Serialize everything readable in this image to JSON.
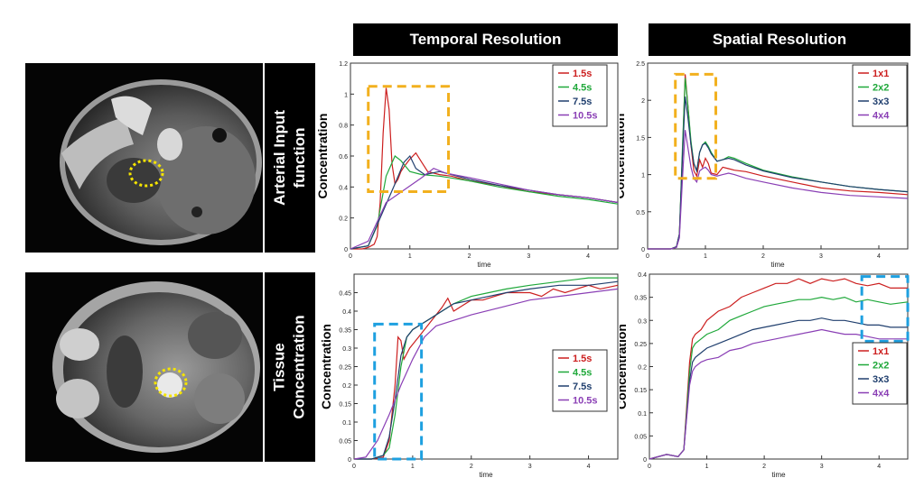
{
  "headers": {
    "temporal": "Temporal Resolution",
    "spatial": "Spatial Resolution"
  },
  "row_labels": {
    "aif_line1": "Arterial Input",
    "aif_line2": "function",
    "tissue_line1": "Tissue",
    "tissue_line2": "Concentration"
  },
  "colors": {
    "red": "#cc1f1f",
    "green": "#1fa83a",
    "blue": "#203f6e",
    "purple": "#8a3fb5",
    "orange_box": "#f2b01e",
    "cyan_box": "#1ea0e0",
    "marker": "#f5e400"
  },
  "chart_data": [
    {
      "id": "aif_temporal",
      "type": "line",
      "title": "",
      "xlabel": "time",
      "ylabel": "Concentration",
      "xlim": [
        0,
        4.5
      ],
      "ylim": [
        0,
        1.2
      ],
      "xticks": [
        0,
        1,
        2,
        3,
        4
      ],
      "yticks": [
        0,
        0.2,
        0.4,
        0.6,
        0.8,
        1,
        1.2
      ],
      "ytick_labels": [
        "0",
        "0.2",
        "0.4",
        "0.6",
        "0.8",
        "1",
        "1.2"
      ],
      "legend": [
        "1.5s",
        "4.5s",
        "7.5s",
        "10.5s"
      ],
      "legend_position": "top-right",
      "highlight": {
        "color": "orange",
        "x": [
          0.3,
          1.65
        ],
        "y": [
          0.37,
          1.05
        ]
      },
      "series": [
        {
          "name": "1.5s",
          "color": "red",
          "x": [
            0,
            0.2,
            0.3,
            0.4,
            0.45,
            0.5,
            0.55,
            0.6,
            0.65,
            0.7,
            0.75,
            0.8,
            0.85,
            0.9,
            1.0,
            1.1,
            1.2,
            1.3,
            1.5,
            1.7,
            2.0,
            2.5,
            3.0,
            3.5,
            4.0,
            4.5
          ],
          "y": [
            0,
            0,
            0.01,
            0.03,
            0.08,
            0.3,
            0.75,
            1.04,
            0.9,
            0.55,
            0.42,
            0.45,
            0.5,
            0.53,
            0.58,
            0.62,
            0.56,
            0.5,
            0.48,
            0.47,
            0.44,
            0.41,
            0.37,
            0.35,
            0.33,
            0.3
          ]
        },
        {
          "name": "4.5s",
          "color": "green",
          "x": [
            0,
            0.3,
            0.45,
            0.6,
            0.75,
            0.85,
            1.0,
            1.2,
            1.5,
            2.0,
            2.5,
            3.0,
            3.5,
            4.0,
            4.5
          ],
          "y": [
            0,
            0.02,
            0.15,
            0.47,
            0.6,
            0.57,
            0.5,
            0.48,
            0.47,
            0.44,
            0.4,
            0.37,
            0.34,
            0.32,
            0.29
          ]
        },
        {
          "name": "7.5s",
          "color": "blue",
          "x": [
            0,
            0.3,
            0.5,
            0.75,
            0.9,
            1.0,
            1.1,
            1.25,
            1.5,
            2.0,
            2.5,
            3.0,
            3.5,
            4.0,
            4.5
          ],
          "y": [
            0,
            0.02,
            0.2,
            0.42,
            0.56,
            0.6,
            0.52,
            0.48,
            0.5,
            0.45,
            0.41,
            0.38,
            0.35,
            0.33,
            0.3
          ]
        },
        {
          "name": "10.5s",
          "color": "purple",
          "x": [
            0,
            0.3,
            0.6,
            0.9,
            1.2,
            1.4,
            1.6,
            2.0,
            2.5,
            3.0,
            3.5,
            4.0,
            4.5
          ],
          "y": [
            0,
            0.05,
            0.3,
            0.38,
            0.46,
            0.52,
            0.49,
            0.46,
            0.42,
            0.38,
            0.35,
            0.33,
            0.3
          ]
        }
      ]
    },
    {
      "id": "aif_spatial",
      "type": "line",
      "title": "",
      "xlabel": "time",
      "ylabel": "Concentration",
      "xlim": [
        0,
        4.5
      ],
      "ylim": [
        0,
        2.5
      ],
      "xticks": [
        0,
        1,
        2,
        3,
        4
      ],
      "yticks": [
        0,
        0.5,
        1,
        1.5,
        2,
        2.5
      ],
      "ytick_labels": [
        "0",
        "0.5",
        "1",
        "1.5",
        "2",
        "2.5"
      ],
      "legend": [
        "1x1",
        "2x2",
        "3x3",
        "4x4"
      ],
      "legend_position": "top-right",
      "highlight": {
        "color": "orange",
        "x": [
          0.48,
          1.18
        ],
        "y": [
          0.95,
          2.35
        ]
      },
      "series": [
        {
          "name": "1x1",
          "color": "red",
          "x": [
            0,
            0.4,
            0.5,
            0.55,
            0.6,
            0.65,
            0.7,
            0.75,
            0.8,
            0.85,
            0.9,
            0.95,
            1.0,
            1.05,
            1.1,
            1.2,
            1.3,
            1.4,
            1.5,
            1.7,
            2.0,
            2.5,
            3.0,
            3.5,
            4.0,
            4.5
          ],
          "y": [
            0,
            0,
            0.03,
            0.2,
            1.2,
            2.35,
            1.9,
            1.4,
            1.05,
            0.98,
            1.2,
            1.1,
            1.22,
            1.15,
            1.02,
            1.0,
            1.1,
            1.08,
            1.06,
            1.04,
            0.98,
            0.9,
            0.82,
            0.78,
            0.76,
            0.73
          ]
        },
        {
          "name": "2x2",
          "color": "green",
          "x": [
            0,
            0.4,
            0.5,
            0.55,
            0.6,
            0.65,
            0.7,
            0.75,
            0.8,
            0.85,
            0.9,
            0.95,
            1.0,
            1.05,
            1.1,
            1.2,
            1.3,
            1.4,
            1.5,
            1.7,
            2.0,
            2.5,
            3.0,
            3.5,
            4.0,
            4.5
          ],
          "y": [
            0,
            0,
            0.03,
            0.2,
            1.3,
            2.3,
            1.9,
            1.45,
            1.15,
            1.05,
            1.3,
            1.4,
            1.44,
            1.38,
            1.3,
            1.18,
            1.2,
            1.24,
            1.22,
            1.15,
            1.06,
            0.97,
            0.9,
            0.84,
            0.8,
            0.77
          ]
        },
        {
          "name": "3x3",
          "color": "blue",
          "x": [
            0,
            0.4,
            0.5,
            0.55,
            0.6,
            0.65,
            0.7,
            0.75,
            0.8,
            0.85,
            0.9,
            0.95,
            1.0,
            1.05,
            1.1,
            1.2,
            1.3,
            1.4,
            1.5,
            1.7,
            2.0,
            2.5,
            3.0,
            3.5,
            4.0,
            4.5
          ],
          "y": [
            0,
            0,
            0.03,
            0.2,
            1.2,
            2.05,
            1.75,
            1.4,
            1.15,
            1.05,
            1.3,
            1.4,
            1.42,
            1.36,
            1.28,
            1.18,
            1.2,
            1.22,
            1.2,
            1.13,
            1.05,
            0.96,
            0.9,
            0.84,
            0.8,
            0.77
          ]
        },
        {
          "name": "4x4",
          "color": "purple",
          "x": [
            0,
            0.4,
            0.5,
            0.55,
            0.6,
            0.65,
            0.7,
            0.75,
            0.8,
            0.85,
            0.9,
            0.95,
            1.0,
            1.05,
            1.1,
            1.2,
            1.3,
            1.4,
            1.5,
            1.7,
            2.0,
            2.5,
            3.0,
            3.5,
            4.0,
            4.5
          ],
          "y": [
            0,
            0,
            0.02,
            0.15,
            0.9,
            1.6,
            1.35,
            1.1,
            0.95,
            0.9,
            1.05,
            1.08,
            1.1,
            1.06,
            1.0,
            0.98,
            1.0,
            1.02,
            1.0,
            0.95,
            0.9,
            0.82,
            0.76,
            0.72,
            0.7,
            0.68
          ]
        }
      ]
    },
    {
      "id": "tissue_temporal",
      "type": "line",
      "title": "",
      "xlabel": "time",
      "ylabel": "Concentration",
      "xlim": [
        0,
        4.5
      ],
      "ylim": [
        0,
        0.5
      ],
      "xticks": [
        0,
        1,
        2,
        3,
        4
      ],
      "yticks": [
        0,
        0.05,
        0.1,
        0.15,
        0.2,
        0.25,
        0.3,
        0.35,
        0.4,
        0.45
      ],
      "ytick_labels": [
        "0",
        "0.05",
        "0.1",
        "0.15",
        "0.2",
        "0.25",
        "0.3",
        "0.35",
        "0.4",
        "0.45"
      ],
      "legend": [
        "1.5s",
        "4.5s",
        "7.5s",
        "10.5s"
      ],
      "legend_position": "center-right",
      "highlight": {
        "color": "cyan",
        "x": [
          0.35,
          1.15
        ],
        "y": [
          0,
          0.365
        ]
      },
      "series": [
        {
          "name": "1.5s",
          "color": "red",
          "x": [
            0,
            0.3,
            0.5,
            0.6,
            0.7,
            0.75,
            0.8,
            0.85,
            0.95,
            1.1,
            1.3,
            1.5,
            1.6,
            1.7,
            1.8,
            2.0,
            2.2,
            2.4,
            2.6,
            2.8,
            3.0,
            3.2,
            3.4,
            3.6,
            3.8,
            4.0,
            4.2,
            4.5
          ],
          "y": [
            0,
            0,
            0.005,
            0.05,
            0.2,
            0.33,
            0.32,
            0.27,
            0.3,
            0.33,
            0.37,
            0.41,
            0.435,
            0.4,
            0.41,
            0.43,
            0.43,
            0.44,
            0.45,
            0.45,
            0.45,
            0.44,
            0.46,
            0.45,
            0.46,
            0.47,
            0.46,
            0.47
          ]
        },
        {
          "name": "4.5s",
          "color": "green",
          "x": [
            0,
            0.3,
            0.5,
            0.6,
            0.7,
            0.8,
            0.9,
            1.0,
            1.1,
            1.3,
            1.5,
            1.7,
            2.0,
            2.3,
            2.6,
            3.0,
            3.5,
            4.0,
            4.5
          ],
          "y": [
            0,
            0,
            0.01,
            0.03,
            0.12,
            0.25,
            0.33,
            0.35,
            0.36,
            0.38,
            0.4,
            0.42,
            0.44,
            0.45,
            0.46,
            0.47,
            0.48,
            0.49,
            0.49
          ]
        },
        {
          "name": "7.5s",
          "color": "blue",
          "x": [
            0,
            0.3,
            0.5,
            0.6,
            0.7,
            0.8,
            0.9,
            1.0,
            1.1,
            1.3,
            1.5,
            1.7,
            2.0,
            2.3,
            2.6,
            3.0,
            3.5,
            4.0,
            4.5
          ],
          "y": [
            0,
            0,
            0.01,
            0.06,
            0.16,
            0.28,
            0.33,
            0.35,
            0.36,
            0.38,
            0.4,
            0.42,
            0.43,
            0.44,
            0.45,
            0.46,
            0.47,
            0.47,
            0.48
          ]
        },
        {
          "name": "10.5s",
          "color": "purple",
          "x": [
            0,
            0.2,
            0.4,
            0.6,
            0.8,
            1.0,
            1.2,
            1.4,
            1.6,
            2.0,
            2.5,
            3.0,
            3.5,
            4.0,
            4.5
          ],
          "y": [
            0,
            0.005,
            0.05,
            0.12,
            0.2,
            0.27,
            0.33,
            0.36,
            0.37,
            0.39,
            0.41,
            0.43,
            0.44,
            0.45,
            0.46
          ]
        }
      ]
    },
    {
      "id": "tissue_spatial",
      "type": "line",
      "title": "",
      "xlabel": "time",
      "ylabel": "Concentration",
      "xlim": [
        0,
        4.5
      ],
      "ylim": [
        0,
        0.4
      ],
      "xticks": [
        0,
        1,
        2,
        3,
        4
      ],
      "yticks": [
        0,
        0.05,
        0.1,
        0.15,
        0.2,
        0.25,
        0.3,
        0.35,
        0.4
      ],
      "ytick_labels": [
        "0",
        "0.05",
        "0.1",
        "0.15",
        "0.2",
        "0.25",
        "0.3",
        "0.35",
        "0.4"
      ],
      "legend": [
        "1x1",
        "2x2",
        "3x3",
        "4x4"
      ],
      "legend_position": "center-right",
      "highlight": {
        "color": "cyan",
        "x": [
          3.7,
          4.5
        ],
        "y": [
          0.255,
          0.395
        ]
      },
      "series": [
        {
          "name": "1x1",
          "color": "red",
          "x": [
            0,
            0.3,
            0.5,
            0.6,
            0.7,
            0.75,
            0.8,
            0.9,
            1.0,
            1.2,
            1.4,
            1.6,
            1.8,
            2.0,
            2.2,
            2.4,
            2.6,
            2.8,
            3.0,
            3.2,
            3.4,
            3.6,
            3.8,
            4.0,
            4.2,
            4.5
          ],
          "y": [
            0,
            0.01,
            0.005,
            0.02,
            0.21,
            0.26,
            0.27,
            0.28,
            0.3,
            0.32,
            0.33,
            0.35,
            0.36,
            0.37,
            0.38,
            0.38,
            0.39,
            0.38,
            0.39,
            0.385,
            0.39,
            0.38,
            0.375,
            0.38,
            0.37,
            0.37
          ]
        },
        {
          "name": "2x2",
          "color": "green",
          "x": [
            0,
            0.3,
            0.5,
            0.6,
            0.7,
            0.75,
            0.8,
            0.9,
            1.0,
            1.2,
            1.4,
            1.6,
            1.8,
            2.0,
            2.2,
            2.4,
            2.6,
            2.8,
            3.0,
            3.2,
            3.4,
            3.6,
            3.8,
            4.0,
            4.2,
            4.5
          ],
          "y": [
            0,
            0.01,
            0.005,
            0.02,
            0.19,
            0.24,
            0.25,
            0.26,
            0.27,
            0.28,
            0.3,
            0.31,
            0.32,
            0.33,
            0.335,
            0.34,
            0.345,
            0.345,
            0.35,
            0.345,
            0.35,
            0.34,
            0.345,
            0.34,
            0.335,
            0.34
          ]
        },
        {
          "name": "3x3",
          "color": "blue",
          "x": [
            0,
            0.3,
            0.5,
            0.6,
            0.7,
            0.75,
            0.8,
            0.9,
            1.0,
            1.2,
            1.4,
            1.6,
            1.8,
            2.0,
            2.2,
            2.4,
            2.6,
            2.8,
            3.0,
            3.2,
            3.4,
            3.6,
            3.8,
            4.0,
            4.2,
            4.5
          ],
          "y": [
            0,
            0.01,
            0.005,
            0.02,
            0.17,
            0.21,
            0.22,
            0.23,
            0.24,
            0.25,
            0.26,
            0.27,
            0.28,
            0.285,
            0.29,
            0.295,
            0.3,
            0.3,
            0.305,
            0.3,
            0.3,
            0.295,
            0.29,
            0.29,
            0.285,
            0.285
          ]
        },
        {
          "name": "4x4",
          "color": "purple",
          "x": [
            0,
            0.3,
            0.5,
            0.6,
            0.7,
            0.75,
            0.8,
            0.9,
            1.0,
            1.2,
            1.4,
            1.6,
            1.8,
            2.0,
            2.2,
            2.4,
            2.6,
            2.8,
            3.0,
            3.2,
            3.4,
            3.6,
            3.8,
            4.0,
            4.2,
            4.5
          ],
          "y": [
            0,
            0.01,
            0.005,
            0.02,
            0.16,
            0.19,
            0.2,
            0.21,
            0.215,
            0.22,
            0.235,
            0.24,
            0.25,
            0.255,
            0.26,
            0.265,
            0.27,
            0.275,
            0.28,
            0.275,
            0.27,
            0.27,
            0.265,
            0.26,
            0.26,
            0.26
          ]
        }
      ]
    }
  ]
}
